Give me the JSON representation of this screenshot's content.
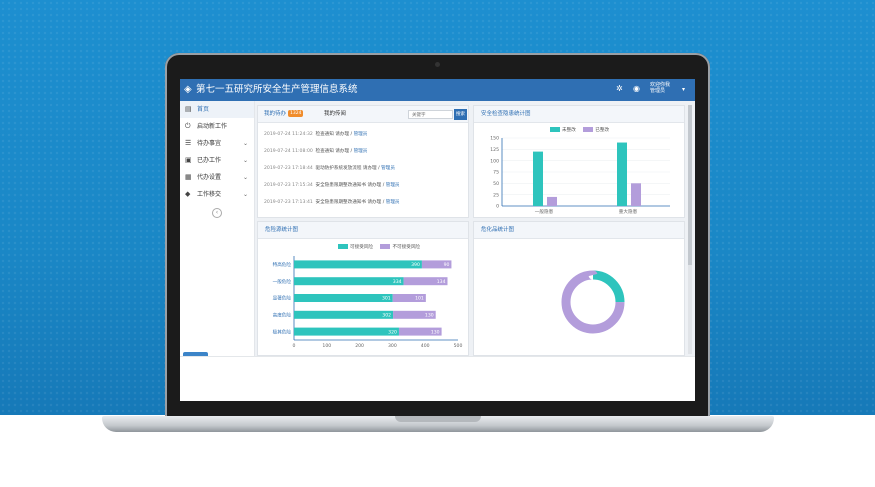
{
  "app": {
    "title": "第七一五研究所安全生产管理信息系统"
  },
  "header": {
    "user_line1": "欢迎你我",
    "user_line2": "管理员"
  },
  "sidebar": {
    "items": [
      {
        "label": "首页",
        "icon": "home-icon",
        "glyph": "▤",
        "chevron": false
      },
      {
        "label": "启动新工作",
        "icon": "power-icon",
        "glyph": "⏻",
        "chevron": false
      },
      {
        "label": "待办事宜",
        "icon": "list-icon",
        "glyph": "☰",
        "chevron": true
      },
      {
        "label": "已办工作",
        "icon": "done-icon",
        "glyph": "▣",
        "chevron": true
      },
      {
        "label": "代办设置",
        "icon": "settings-icon",
        "glyph": "▦",
        "chevron": true
      },
      {
        "label": "工作移交",
        "icon": "tag-icon",
        "glyph": "◆",
        "chevron": true
      }
    ]
  },
  "todo_panel": {
    "tab1": "我的待办",
    "tab1_badge": "1324",
    "tab2": "我的传阅",
    "search_placeholder": "关键字",
    "search_button": "搜索",
    "rows": [
      {
        "time": "2019-07-24 11:24:32",
        "text": "检查通知 请办理",
        "link": "管理员"
      },
      {
        "time": "2019-07-24 11:08:00",
        "text": "检查通知 请办理",
        "link": "管理员"
      },
      {
        "time": "2019-07-23 17:18:44",
        "text": "驱动防护系统发放流程 请办理",
        "link": "管理员"
      },
      {
        "time": "2019-07-23 17:15:34",
        "text": "安全隐患限期整改通知书 请办理",
        "link": "管理员"
      },
      {
        "time": "2019-07-23 17:13:41",
        "text": "安全隐患限期整改通知书 请办理",
        "link": "管理员"
      }
    ]
  },
  "hazard_panel": {
    "title": "安全检查隐患统计图"
  },
  "risk_panel": {
    "title": "危险源统计图"
  },
  "chem_panel": {
    "title": "危化品统计图"
  },
  "colors": {
    "teal": "#2ec4bd",
    "purple": "#b39ddb",
    "header_blue": "#2f6fb3"
  },
  "chart_data": [
    {
      "type": "bar",
      "title": "安全检查隐患统计图",
      "categories": [
        "一般隐患",
        "重大隐患"
      ],
      "series": [
        {
          "name": "未整改",
          "values": [
            120,
            140
          ]
        },
        {
          "name": "已整改",
          "values": [
            20,
            50
          ]
        }
      ],
      "ylim": [
        0,
        150
      ],
      "yticks": [
        0,
        25,
        50,
        75,
        100,
        125,
        150
      ],
      "legend": "top-center"
    },
    {
      "type": "bar",
      "orientation": "horizontal",
      "stacked": true,
      "title": "危险源统计图",
      "categories": [
        "特高危险",
        "一般危险",
        "显著危险",
        "高度危险",
        "极其危险"
      ],
      "series": [
        {
          "name": "可接受风险",
          "values": [
            390,
            334,
            301,
            302,
            320
          ]
        },
        {
          "name": "不可接受风险",
          "values": [
            90,
            134,
            101,
            130,
            130
          ]
        }
      ],
      "xlim": [
        0,
        500
      ],
      "xticks": [
        0,
        100,
        200,
        300,
        400,
        500
      ],
      "legend": "top-center"
    },
    {
      "type": "pie",
      "donut": true,
      "title": "危化品统计图",
      "slices": [
        {
          "share": 0.25,
          "color": "teal"
        },
        {
          "share": 0.75,
          "color": "purple"
        }
      ]
    }
  ]
}
